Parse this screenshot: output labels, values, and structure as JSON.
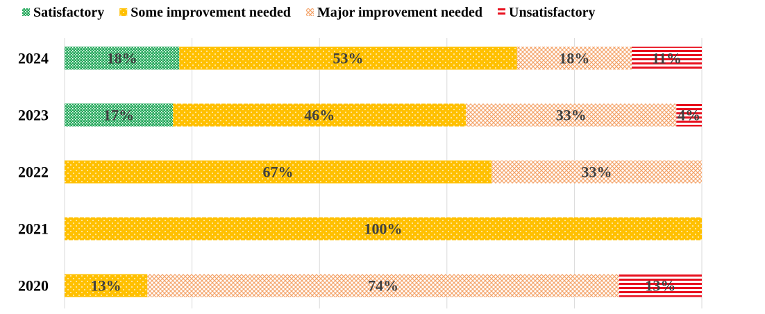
{
  "chart_data": {
    "type": "stacked-bar-horizontal",
    "categories": [
      "2024",
      "2023",
      "2022",
      "2021",
      "2020"
    ],
    "series": [
      {
        "name": "Satisfactory",
        "color": "#22a85a",
        "values": [
          18,
          17,
          0,
          0,
          0
        ],
        "value_labels": [
          "18%",
          "17%",
          null,
          null,
          null
        ]
      },
      {
        "name": "Some improvement needed",
        "color": "#ffc000",
        "values": [
          53,
          46,
          67,
          100,
          13
        ],
        "value_labels": [
          "53%",
          "46%",
          "67%",
          "100%",
          "13%"
        ]
      },
      {
        "name": "Major improvement needed",
        "color": "#f4a46a",
        "values": [
          18,
          33,
          33,
          0,
          74
        ],
        "value_labels": [
          "18%",
          "33%",
          "33%",
          null,
          "74%"
        ]
      },
      {
        "name": "Unsatisfactory",
        "color": "#e8101e",
        "values": [
          11,
          4,
          0,
          0,
          13
        ],
        "value_labels": [
          "11%",
          "4%",
          null,
          null,
          "13%"
        ]
      }
    ],
    "xlim": [
      0,
      100
    ],
    "xticks": [
      0,
      20,
      40,
      60,
      80,
      100
    ],
    "grid": true,
    "legend": "top"
  }
}
